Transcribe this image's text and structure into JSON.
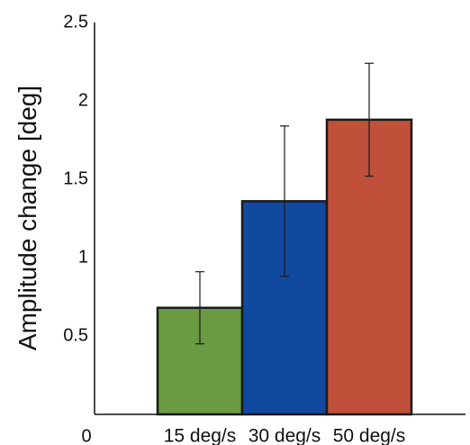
{
  "chart_data": {
    "type": "bar",
    "title": "",
    "xlabel": "",
    "ylabel": "Amplitude change [deg]",
    "ylim": [
      0,
      2.5
    ],
    "yticks": [
      0,
      0.5,
      1,
      1.5,
      2,
      2.5
    ],
    "ytick_labels": [
      "0",
      "0.5",
      "1",
      "1.5",
      "2",
      "2.5"
    ],
    "categories": [
      "15 deg/s",
      "30 deg/s",
      "50 deg/s"
    ],
    "values": [
      0.68,
      1.36,
      1.88
    ],
    "error_low": [
      0.45,
      0.88,
      1.52
    ],
    "error_high": [
      0.91,
      1.84,
      2.24
    ],
    "colors": [
      "#6a9a42",
      "#1249a0",
      "#c1503a"
    ],
    "grid": false,
    "legend": "none"
  }
}
